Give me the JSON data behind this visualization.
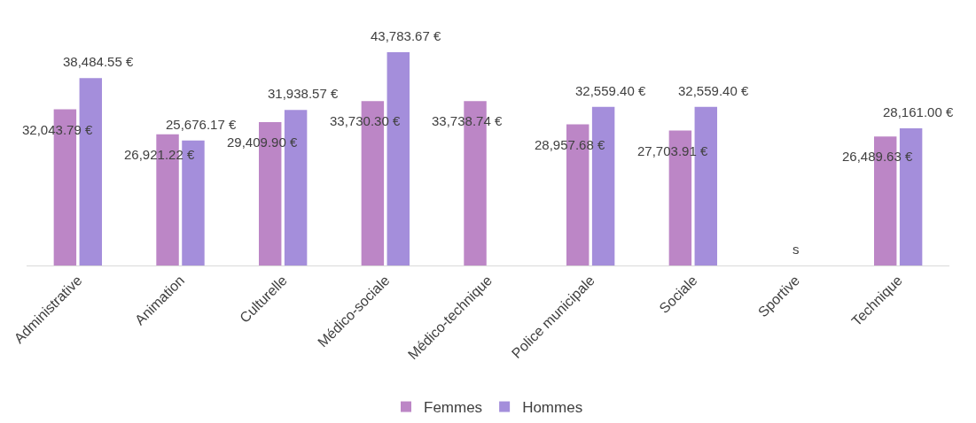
{
  "chart_data": {
    "type": "bar",
    "categories": [
      "Administrative",
      "Animation",
      "Culturelle",
      "Médico-sociale",
      "Médico-technique",
      "Police municipale",
      "Sociale",
      "Sportive",
      "Technique"
    ],
    "series": [
      {
        "name": "Femmes",
        "color": "#bc86c6",
        "values": [
          32043.79,
          26921.22,
          29409.9,
          33730.3,
          33738.74,
          28957.68,
          27703.91,
          null,
          26489.63
        ],
        "value_labels": [
          "32,043.79 €",
          "26,921.22 €",
          "29,409.90 €",
          "33,730.30 €",
          "33,738.74 €",
          "28,957.68 €",
          "27,703.91 €",
          null,
          "26,489.63 €"
        ]
      },
      {
        "name": "Hommes",
        "color": "#a48edb",
        "values": [
          38484.55,
          25676.17,
          31938.57,
          43783.67,
          null,
          32559.4,
          32559.4,
          null,
          28161
        ],
        "value_labels": [
          "38,484.55 €",
          "25,676.17 €",
          "31,938.57 €",
          "43,783.67 €",
          null,
          "32,559.40 €",
          "32,559.40 €",
          null,
          "28,161.00 €"
        ]
      }
    ],
    "annotations": [
      "s"
    ],
    "legend": "bottom"
  }
}
